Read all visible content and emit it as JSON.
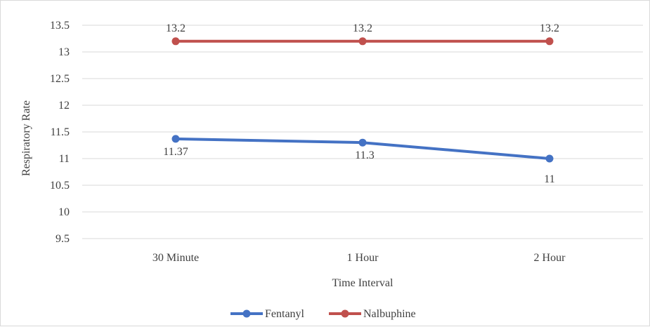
{
  "chart_data": {
    "type": "line",
    "title": "",
    "xlabel": "Time Interval",
    "ylabel": "Respiratory Rate",
    "categories": [
      "30 Minute",
      "1 Hour",
      "2 Hour"
    ],
    "ylim": [
      9.5,
      13.5
    ],
    "yticks": [
      "9.5",
      "10",
      "10.5",
      "11",
      "11.5",
      "12",
      "12.5",
      "13",
      "13.5"
    ],
    "grid": true,
    "legend_position": "bottom",
    "series": [
      {
        "name": "Fentanyl",
        "color": "#4472c4",
        "values": [
          11.37,
          11.3,
          11
        ],
        "labels": [
          "11.37",
          "11.3",
          "11"
        ]
      },
      {
        "name": "Nalbuphine",
        "color": "#c0504d",
        "values": [
          13.2,
          13.2,
          13.2
        ],
        "labels": [
          "13.2",
          "13.2",
          "13.2"
        ]
      }
    ]
  }
}
